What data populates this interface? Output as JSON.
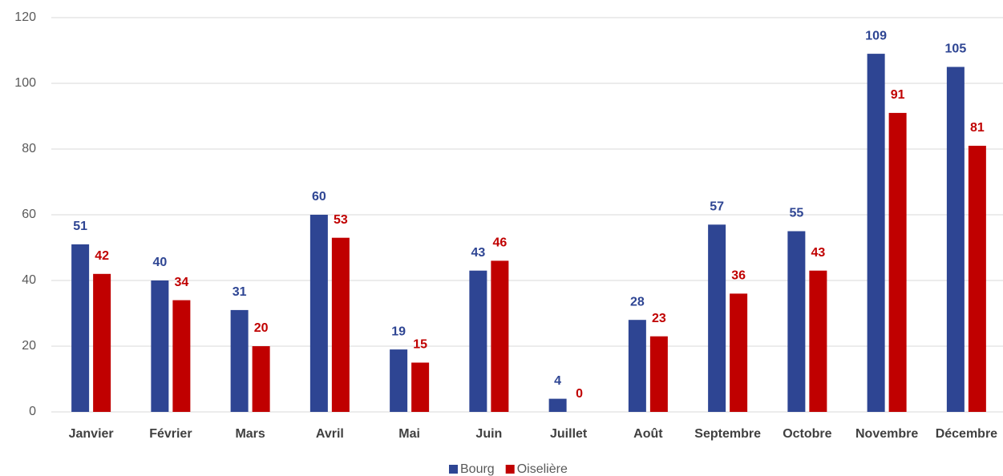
{
  "chart_data": {
    "type": "bar",
    "categories": [
      "Janvier",
      "Février",
      "Mars",
      "Avril",
      "Mai",
      "Juin",
      "Juillet",
      "Août",
      "Septembre",
      "Octobre",
      "Novembre",
      "Décembre"
    ],
    "series": [
      {
        "name": "Bourg",
        "color": "#2e4593",
        "values": [
          51,
          40,
          31,
          60,
          19,
          43,
          4,
          28,
          57,
          55,
          109,
          105
        ]
      },
      {
        "name": "Oiselière",
        "color": "#c00000",
        "values": [
          42,
          34,
          20,
          53,
          15,
          46,
          0,
          23,
          36,
          43,
          91,
          81
        ]
      }
    ],
    "ylim": [
      0,
      120
    ],
    "yticks": [
      0,
      20,
      40,
      60,
      80,
      100,
      120
    ],
    "grid": true,
    "legend": "bottom"
  }
}
